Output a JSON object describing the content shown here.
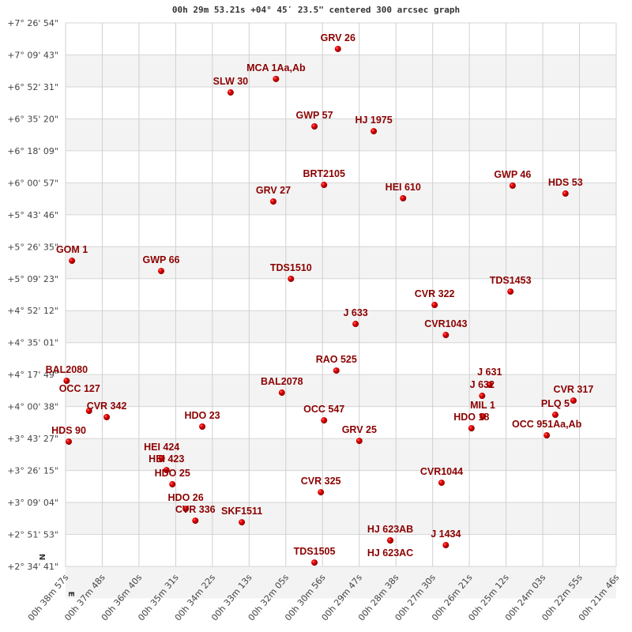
{
  "chart_data": {
    "type": "scatter",
    "title": "00h 29m 53.21s +04° 45′ 23.5\" centered 300 arcsec graph",
    "x_unit": "RA seconds",
    "y_unit": "Dec degrees",
    "xlim": [
      2337,
      1306
    ],
    "ylim": [
      2.5781,
      7.4483
    ],
    "grid": true,
    "marker_color": "#dd0000",
    "label_color": "#8b0000",
    "x_tick_labels": [
      "00h 38m 57s",
      "00h 37m 48s",
      "00h 36m 40s",
      "00h 35m 31s",
      "00h 34m 22s",
      "00h 33m 13s",
      "00h 32m 05s",
      "00h 30m 56s",
      "00h 29m 47s",
      "00h 28m 38s",
      "00h 27m 30s",
      "00h 26m 21s",
      "00h 25m 12s",
      "00h 24m 03s",
      "00h 22m 55s",
      "00h 21m 46s"
    ],
    "y_tick_labels": [
      "+7° 26' 54\"",
      "+7° 09' 43\"",
      "+6° 52' 31\"",
      "+6° 35' 20\"",
      "+6° 18' 09\"",
      "+6° 00' 57\"",
      "+5° 43' 46\"",
      "+5° 26' 35\"",
      "+5° 09' 23\"",
      "+4° 52' 12\"",
      "+4° 35' 01\"",
      "+4° 17' 49\"",
      "+4° 00' 38\"",
      "+3° 43' 27\"",
      "+3° 26' 15\"",
      "+3° 09' 04\"",
      "+2° 51' 53\"",
      "+2° 34' 41\""
    ],
    "compass": {
      "north": "N",
      "east": "E"
    },
    "points": [
      {
        "name": "GRV  26",
        "ra": 1827,
        "dec": 7.215
      },
      {
        "name": "MCA   1Aa,Ab",
        "ra": 1943,
        "dec": 6.946
      },
      {
        "name": "SLW  30",
        "ra": 2028,
        "dec": 6.825
      },
      {
        "name": "GWP  57",
        "ra": 1871,
        "dec": 6.521
      },
      {
        "name": "HJ 1975",
        "ra": 1760,
        "dec": 6.478
      },
      {
        "name": "BRT2105",
        "ra": 1853,
        "dec": 5.997
      },
      {
        "name": "GRV  27",
        "ra": 1948,
        "dec": 5.848
      },
      {
        "name": "HEI 610",
        "ra": 1705,
        "dec": 5.877
      },
      {
        "name": "GWP  46",
        "ra": 1500,
        "dec": 5.99
      },
      {
        "name": "HDS  53",
        "ra": 1401,
        "dec": 5.919
      },
      {
        "name": "GOM   1",
        "ra": 2325,
        "dec": 5.317
      },
      {
        "name": "GWP  66",
        "ra": 2158,
        "dec": 5.225
      },
      {
        "name": "TDS1510",
        "ra": 1915,
        "dec": 5.155
      },
      {
        "name": "TDS1453",
        "ra": 1504,
        "dec": 5.041
      },
      {
        "name": "CVR 322",
        "ra": 1646,
        "dec": 4.921
      },
      {
        "name": "J   633",
        "ra": 1794,
        "dec": 4.751
      },
      {
        "name": "CVR1043",
        "ra": 1625,
        "dec": 4.652
      },
      {
        "name": "RAO 525",
        "ra": 1830,
        "dec": 4.333
      },
      {
        "name": "BAL2080",
        "ra": 2335,
        "dec": 4.241
      },
      {
        "name": "BAL2078",
        "ra": 1932,
        "dec": 4.135
      },
      {
        "name": "J   631",
        "ra": 1543,
        "dec": 4.206
      },
      {
        "name": "J   632",
        "ra": 1557,
        "dec": 4.107
      },
      {
        "name": "OCC 127",
        "ra": 2293,
        "dec": 3.972
      },
      {
        "name": "CVR 342",
        "ra": 2260,
        "dec": 3.916
      },
      {
        "name": "CVR 317",
        "ra": 1386,
        "dec": 4.064
      },
      {
        "name": "PLQ   5",
        "ra": 1420,
        "dec": 3.937
      },
      {
        "name": "MIL   1",
        "ra": 1556,
        "dec": 3.923
      },
      {
        "name": "HDO  18",
        "ra": 1577,
        "dec": 3.816
      },
      {
        "name": "OCC 951Aa,Ab",
        "ra": 1436,
        "dec": 3.753
      },
      {
        "name": "OCC 547",
        "ra": 1853,
        "dec": 3.887
      },
      {
        "name": "GRV  25",
        "ra": 1787,
        "dec": 3.703
      },
      {
        "name": "HDO  23",
        "ra": 2081,
        "dec": 3.831
      },
      {
        "name": "HDS  90",
        "ra": 2331,
        "dec": 3.696
      },
      {
        "name": "HEI 424",
        "ra": 2157,
        "dec": 3.547
      },
      {
        "name": "HEI 423",
        "ra": 2148,
        "dec": 3.441
      },
      {
        "name": "HDO  25",
        "ra": 2137,
        "dec": 3.314
      },
      {
        "name": "HDO  26",
        "ra": 2112,
        "dec": 3.094
      },
      {
        "name": "CVR 336",
        "ra": 2094,
        "dec": 2.988
      },
      {
        "name": "SKF1511",
        "ra": 2007,
        "dec": 2.974
      },
      {
        "name": "CVR 325",
        "ra": 1859,
        "dec": 3.243
      },
      {
        "name": "CVR1044",
        "ra": 1633,
        "dec": 3.328
      },
      {
        "name": "HJ  623AB",
        "ra": 1729,
        "dec": 2.811
      },
      {
        "name": "HJ  623AC",
        "ra": 1729,
        "dec": 2.811
      },
      {
        "name": "J  1434",
        "ra": 1625,
        "dec": 2.769
      },
      {
        "name": "TDS1505",
        "ra": 1871,
        "dec": 2.613
      }
    ]
  }
}
